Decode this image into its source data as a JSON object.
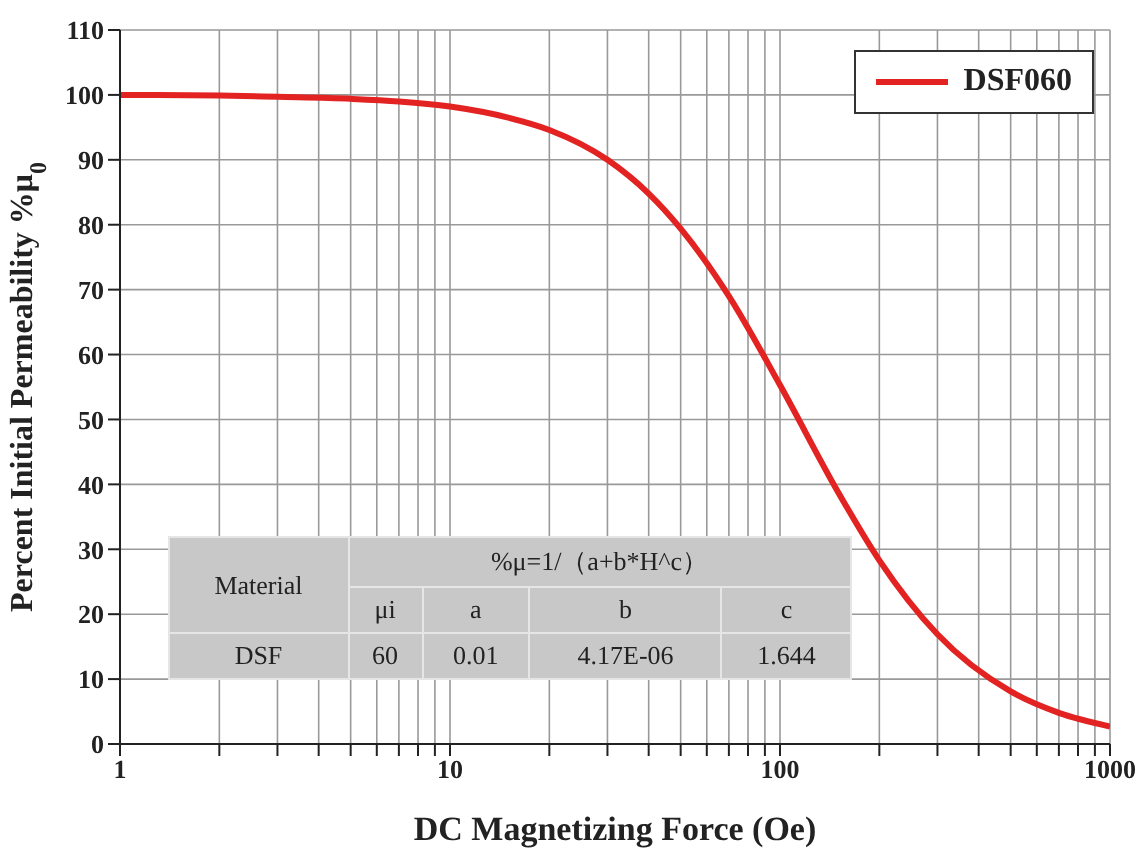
{
  "chart_data": {
    "type": "line",
    "xlabel": "DC Magnetizing Force (Oe)",
    "ylabel": "Percent Initial Permeability %μ$_{0}$",
    "x": [
      1,
      2,
      3,
      5,
      7,
      10,
      15,
      20,
      30,
      40,
      50,
      70,
      100,
      150,
      200,
      300,
      500,
      700,
      1000
    ],
    "series": [
      {
        "name": "DSF060",
        "color": "#e32222",
        "values": [
          100,
          99.9,
          99.7,
          99.4,
          99,
          98.2,
          96.5,
          94.6,
          90,
          84.8,
          79.4,
          69,
          55.3,
          38.8,
          28.3,
          16.9,
          8.1,
          4.8,
          2.7
        ]
      }
    ],
    "log": "x",
    "xlim": [
      1,
      1000
    ],
    "xticks": [
      1,
      {
        "value": 2,
        "label": null
      },
      {
        "value": 3,
        "label": null
      },
      {
        "value": 4,
        "label": null
      },
      {
        "value": 5,
        "label": null
      },
      {
        "value": 6,
        "label": null
      },
      {
        "value": 7,
        "label": null
      },
      {
        "value": 8,
        "label": null
      },
      {
        "value": 9,
        "label": null
      },
      10,
      {
        "value": 20,
        "label": null
      },
      {
        "value": 30,
        "label": null
      },
      {
        "value": 40,
        "label": null
      },
      {
        "value": 50,
        "label": null
      },
      {
        "value": 60,
        "label": null
      },
      {
        "value": 70,
        "label": null
      },
      {
        "value": 80,
        "label": null
      },
      {
        "value": 90,
        "label": null
      },
      100,
      {
        "value": 200,
        "label": null
      },
      {
        "value": 300,
        "label": null
      },
      {
        "value": 400,
        "label": null
      },
      {
        "value": 500,
        "label": null
      },
      {
        "value": 600,
        "label": null
      },
      {
        "value": 700,
        "label": null
      },
      {
        "value": 800,
        "label": null
      },
      {
        "value": 900,
        "label": null
      },
      1000
    ],
    "ylim": [
      0,
      110
    ],
    "yticks": [
      0,
      10,
      20,
      30,
      40,
      50,
      60,
      70,
      80,
      90,
      100,
      110
    ],
    "grid": true,
    "legend": "top right",
    "marker": "none",
    "line_style": "solid",
    "annotations": [
      "Material",
      "%μ=1/（a+b*H^c）",
      "μi",
      "a",
      "b",
      "c",
      "DSF",
      "60",
      "0.01",
      "4.17E-06",
      "1.644"
    ]
  }
}
